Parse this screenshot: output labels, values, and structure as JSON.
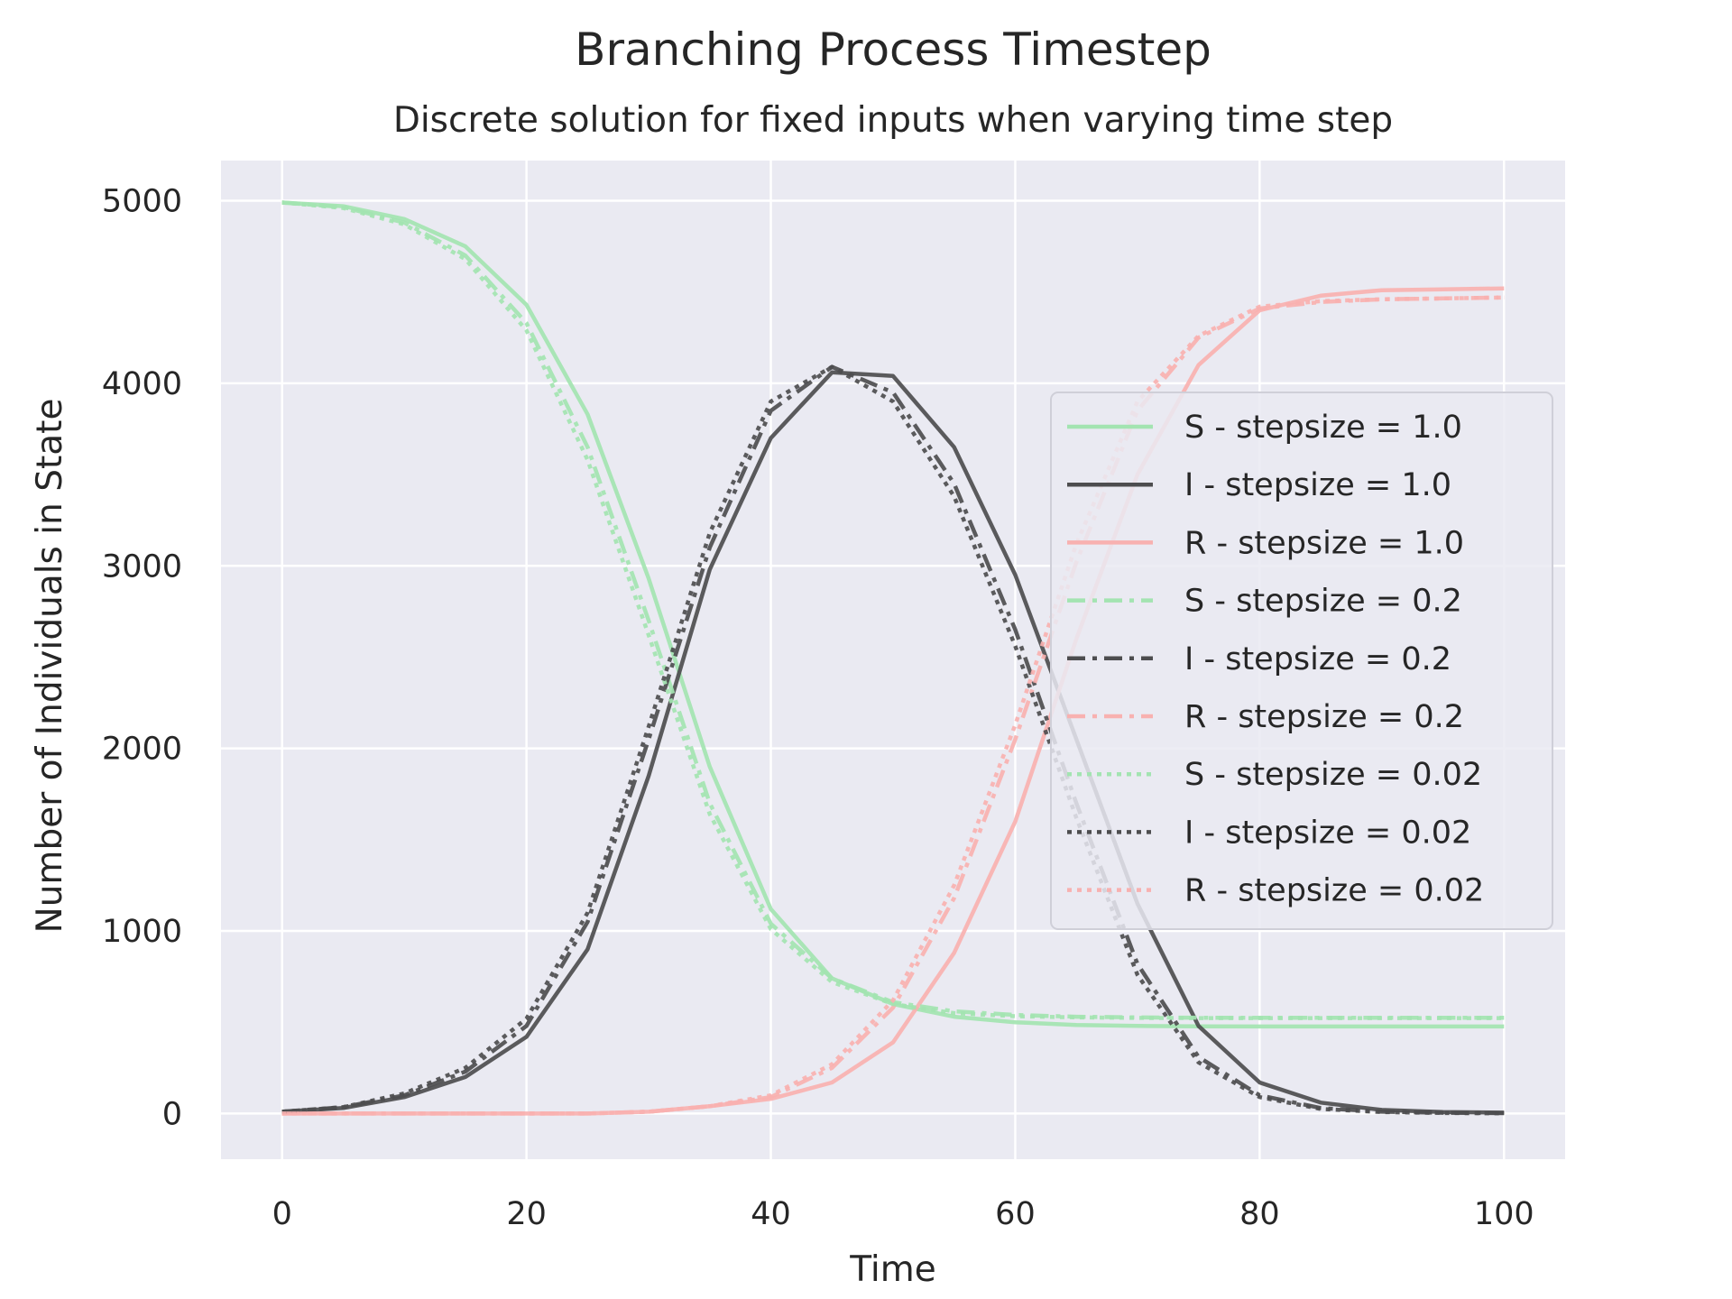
{
  "chart_data": {
    "type": "line",
    "title": "Branching Process Timestep",
    "subtitle": "Discrete solution for fixed inputs when varying time step",
    "xlabel": "Time",
    "ylabel": "Number of Individuals in State",
    "xlim": [
      -5,
      105
    ],
    "ylim": [
      -250,
      5220
    ],
    "xticks": [
      0,
      20,
      40,
      60,
      80,
      100
    ],
    "yticks": [
      0,
      1000,
      2000,
      3000,
      4000,
      5000
    ],
    "grid": true,
    "legend_position": "center-right",
    "colors": {
      "S": "#a3e4b1",
      "I": "#4d4d4f",
      "R": "#f8b1b0",
      "background": "#eaeaf2",
      "grid": "#ffffff"
    },
    "x": [
      0,
      5,
      10,
      15,
      20,
      25,
      30,
      35,
      40,
      45,
      50,
      55,
      60,
      65,
      70,
      75,
      80,
      85,
      90,
      95,
      100
    ],
    "series": [
      {
        "name": "S - stepsize = 1.0",
        "compartment": "S",
        "style": "solid",
        "values": [
          4990,
          4970,
          4900,
          4750,
          4430,
          3830,
          2930,
          1900,
          1120,
          740,
          600,
          530,
          500,
          485,
          480,
          478,
          477,
          477,
          477,
          477,
          477
        ]
      },
      {
        "name": "I - stepsize = 1.0",
        "compartment": "I",
        "style": "solid",
        "values": [
          10,
          30,
          90,
          200,
          420,
          900,
          1850,
          2980,
          3700,
          4060,
          4040,
          3650,
          2950,
          2050,
          1150,
          480,
          170,
          60,
          20,
          8,
          5
        ]
      },
      {
        "name": "R - stepsize = 1.0",
        "compartment": "R",
        "style": "solid",
        "values": [
          0,
          0,
          0,
          0,
          0,
          0,
          10,
          40,
          80,
          170,
          390,
          880,
          1600,
          2600,
          3500,
          4100,
          4400,
          4480,
          4510,
          4515,
          4520
        ]
      },
      {
        "name": "S - stepsize = 0.2",
        "compartment": "S",
        "style": "dashdot",
        "values": [
          4990,
          4965,
          4880,
          4700,
          4330,
          3650,
          2700,
          1700,
          1040,
          740,
          610,
          560,
          540,
          530,
          527,
          525,
          525,
          525,
          525,
          525,
          525
        ]
      },
      {
        "name": "I - stepsize = 0.2",
        "compartment": "I",
        "style": "dashdot",
        "values": [
          10,
          35,
          100,
          230,
          480,
          1050,
          2050,
          3100,
          3850,
          4090,
          3950,
          3450,
          2650,
          1700,
          820,
          310,
          100,
          30,
          10,
          4,
          2
        ]
      },
      {
        "name": "R - stepsize = 0.2",
        "compartment": "R",
        "style": "dashdot",
        "values": [
          0,
          0,
          0,
          0,
          0,
          0,
          10,
          40,
          90,
          250,
          580,
          1180,
          2050,
          3020,
          3850,
          4250,
          4410,
          4445,
          4460,
          4465,
          4470
        ]
      },
      {
        "name": "S - stepsize = 0.02",
        "compartment": "S",
        "style": "dotted",
        "values": [
          4990,
          4960,
          4870,
          4680,
          4290,
          3580,
          2620,
          1640,
          1010,
          720,
          600,
          550,
          533,
          527,
          524,
          523,
          523,
          523,
          523,
          523,
          523
        ]
      },
      {
        "name": "I - stepsize = 0.02",
        "compartment": "I",
        "style": "dotted",
        "values": [
          10,
          35,
          110,
          250,
          520,
          1100,
          2120,
          3180,
          3900,
          4090,
          3900,
          3380,
          2560,
          1620,
          760,
          280,
          90,
          25,
          8,
          3,
          1
        ]
      },
      {
        "name": "R - stepsize = 0.02",
        "compartment": "R",
        "style": "dotted",
        "values": [
          0,
          0,
          0,
          0,
          0,
          0,
          10,
          40,
          100,
          270,
          620,
          1250,
          2130,
          3120,
          3900,
          4260,
          4420,
          4450,
          4460,
          4465,
          4470
        ]
      }
    ]
  }
}
